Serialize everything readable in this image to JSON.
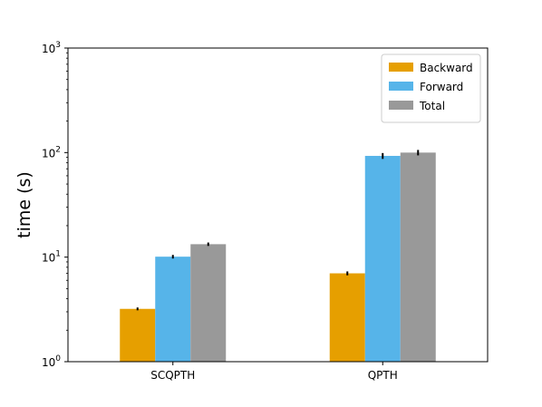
{
  "chart_data": {
    "type": "bar",
    "title": "",
    "xlabel": "",
    "ylabel": "time (s)",
    "yscale": "log",
    "ylim": [
      1,
      1000
    ],
    "yticks": [
      {
        "value": 1,
        "base": "10",
        "exp": "0"
      },
      {
        "value": 10,
        "base": "10",
        "exp": "1"
      },
      {
        "value": 100,
        "base": "10",
        "exp": "2"
      },
      {
        "value": 1000,
        "base": "10",
        "exp": "3"
      }
    ],
    "categories": [
      "SCQPTH",
      "QPTH"
    ],
    "series": [
      {
        "name": "Backward",
        "color": "#e69f00",
        "values": [
          3.2,
          7.0
        ],
        "errors": [
          0.1,
          0.3
        ]
      },
      {
        "name": "Forward",
        "color": "#56b4e9",
        "values": [
          10.1,
          93.0
        ],
        "errors": [
          0.4,
          6.0
        ]
      },
      {
        "name": "Total",
        "color": "#999999",
        "values": [
          13.3,
          100.0
        ],
        "errors": [
          0.5,
          6.0
        ]
      }
    ],
    "legend_position": "top-right",
    "grid": false
  }
}
